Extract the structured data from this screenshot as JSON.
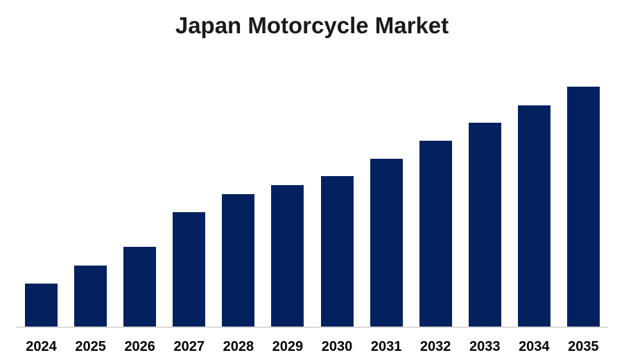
{
  "page": {
    "background_color": "#ffffff"
  },
  "chart": {
    "title": "Japan Motorcycle Market",
    "title_color": "#1a1a1a",
    "bar_color": "#02215e",
    "axis_line_color": "#d9d9d9",
    "label_color": "#000000"
  },
  "chart_data": {
    "type": "bar",
    "title": "Japan Motorcycle Market",
    "categories": [
      "2024",
      "2025",
      "2026",
      "2027",
      "2028",
      "2029",
      "2030",
      "2031",
      "2032",
      "2033",
      "2034",
      "2035"
    ],
    "values": [
      17.9,
      25.4,
      33.2,
      47.7,
      55.2,
      59.0,
      62.7,
      69.9,
      77.5,
      85.0,
      92.2,
      100.0
    ],
    "units": "relative index (chart shows no y-axis labels; tallest bar normalized to 100)",
    "xlabel": "",
    "ylabel": "",
    "ylim": [
      0,
      104
    ],
    "grid": false,
    "legend": false,
    "y_axis_visible": false,
    "bar_color": "#02215e"
  }
}
